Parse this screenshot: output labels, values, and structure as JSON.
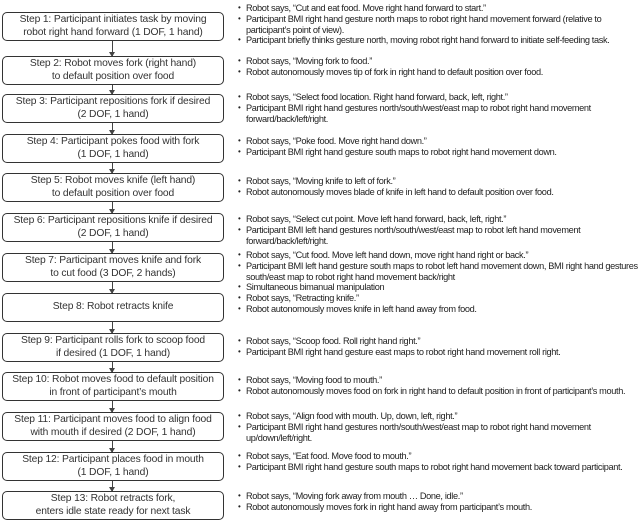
{
  "steps": [
    {
      "label": "Step 1: Participant initiates task by moving\nrobot right hand forward (1 DOF, 1 hand)",
      "notes": [
        "Robot says, “Cut and eat food. Move right hand forward to start.”",
        "Participant BMI right hand gesture north maps to robot right hand movement forward (relative to participant’s point of view).",
        "Participant briefly thinks gesture north, moving robot right hand forward to initiate self-feeding task."
      ]
    },
    {
      "label": "Step 2: Robot moves fork (right hand)\nto default position over food",
      "notes": [
        "Robot says, “Moving fork to food.”",
        "Robot autonomously moves tip of fork in right hand to default position over food."
      ]
    },
    {
      "label": "Step 3: Participant repositions fork if desired\n(2 DOF, 1 hand)",
      "notes": [
        "Robot says, “Select food location. Right hand forward, back, left, right.”",
        "Participant BMI right hand gestures north/south/west/east map to robot right hand movement forward/back/left/right."
      ]
    },
    {
      "label": "Step 4: Participant pokes food with fork\n(1 DOF, 1 hand)",
      "notes": [
        "Robot says, “Poke food. Move right hand down.”",
        "Participant BMI right hand gesture south maps to robot right hand movement down."
      ]
    },
    {
      "label": "Step 5: Robot moves knife (left hand)\nto default position over food",
      "notes": [
        "Robot says, “Moving knife to left of fork.”",
        "Robot autonomously moves blade of knife in left hand to default position over food."
      ]
    },
    {
      "label": "Step 6: Participant repositions knife if desired\n(2 DOF, 1 hand)",
      "notes": [
        "Robot says, “Select cut point. Move left hand forward, back, left, right.”",
        "Participant BMI left hand gestures north/south/west/east map to robot left hand movement forward/back/left/right."
      ]
    },
    {
      "label": "Step 7: Participant moves knife and fork\nto cut food (3 DOF, 2 hands)",
      "notes": [
        "Robot says, “Cut food. Move left hand down, move right hand right or back.”",
        "Participant BMI left hand gesture south maps to robot left hand movement down, BMI right hand gestures south/east map to robot right hand movement back/right",
        "Simultaneous bimanual manipulation"
      ]
    },
    {
      "label": "Step 8: Robot retracts knife",
      "notes": [
        "Robot says, “Retracting knife.”",
        "Robot autonomously moves knife in left hand away from food."
      ]
    },
    {
      "label": "Step 9: Participant rolls fork to scoop food\nif desired (1 DOF, 1 hand)",
      "notes": [
        "Robot says, “Scoop food. Roll right hand right.”",
        "Participant BMI right hand gesture east maps to robot right hand movement roll right."
      ]
    },
    {
      "label": "Step 10: Robot moves food to default position\nin front of participant’s mouth",
      "notes": [
        "Robot says, “Moving food to mouth.”",
        "Robot autonomously moves food on fork in right hand to default position in front of participant’s mouth."
      ]
    },
    {
      "label": "Step 11: Participant moves food to align food\nwith mouth if desired (2 DOF, 1 hand)",
      "notes": [
        "Robot says, “Align food with mouth. Up, down, left, right.”",
        "Participant BMI right hand gestures north/south/west/east map to robot right hand movement up/down/left/right."
      ]
    },
    {
      "label": "Step 12: Participant places food in mouth\n(1 DOF, 1 hand)",
      "notes": [
        "Robot says, “Eat food. Move food to mouth.”",
        "Participant BMI right hand gesture south maps to robot right hand movement back toward participant."
      ]
    },
    {
      "label": "Step 13: Robot retracts fork,\nenters idle state ready for next task",
      "notes": [
        "Robot says, “Moving fork away from mouth … Done, idle.”",
        "Robot autonomously moves fork in right hand away from participant’s mouth."
      ]
    }
  ]
}
